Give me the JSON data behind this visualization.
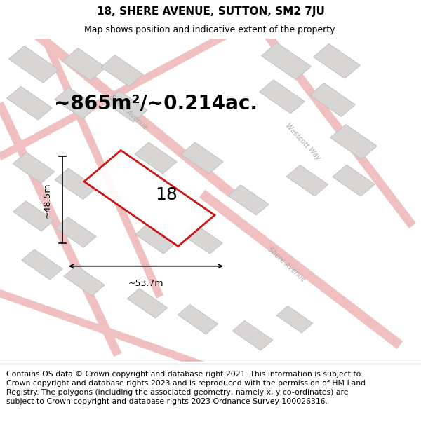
{
  "title": "18, SHERE AVENUE, SUTTON, SM2 7JU",
  "subtitle": "Map shows position and indicative extent of the property.",
  "area_text": "~865m²/~0.214ac.",
  "property_number": "18",
  "dim_width": "~53.7m",
  "dim_height": "~48.5m",
  "map_bg_color": "#f7f5f5",
  "road_color": "#f0c0c0",
  "road_fill_color": "#f8f0f0",
  "building_color": "#d8d5d5",
  "building_edge": "#c5c0c0",
  "property_edge": "#cc0000",
  "title_fontsize": 11,
  "subtitle_fontsize": 9,
  "area_fontsize": 20,
  "footer_fontsize": 7.8,
  "footer_text": "Contains OS data © Crown copyright and database right 2021. This information is subject to Crown copyright and database rights 2023 and is reproduced with the permission of HM Land Registry. The polygons (including the associated geometry, namely x, y co-ordinates) are subject to Crown copyright and database rights 2023 Ordnance Survey 100026316.",
  "road_label_color": "#aaaaaa",
  "road_label_size": 7,
  "ang_deg": -42
}
